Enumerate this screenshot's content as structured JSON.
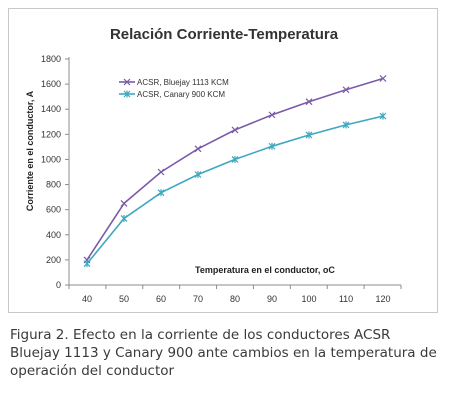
{
  "chart_data": {
    "type": "line",
    "title": "Relación Corriente-Temperatura",
    "xlabel": "Temperatura en el conductor, oC",
    "ylabel": "Corriente en el conductor, A",
    "x": [
      40,
      50,
      60,
      70,
      80,
      90,
      100,
      110,
      120
    ],
    "xticks": [
      "40",
      "50",
      "60",
      "70",
      "80",
      "90",
      "100",
      "110",
      "120"
    ],
    "ylim": [
      0,
      1800
    ],
    "yticks": [
      "0",
      "200",
      "400",
      "600",
      "800",
      "1000",
      "1200",
      "1400",
      "1600",
      "1800"
    ],
    "grid": false,
    "legend_position": "top-left",
    "series": [
      {
        "name": "ACSR, Bluejay 1113 KCM",
        "color": "#7b5ba6",
        "marker": "x",
        "values": [
          200,
          650,
          900,
          1085,
          1235,
          1355,
          1460,
          1555,
          1645
        ]
      },
      {
        "name": "ACSR, Canary 900 KCM",
        "color": "#3fa8c0",
        "marker": "asterisk",
        "values": [
          170,
          530,
          735,
          880,
          1000,
          1105,
          1195,
          1275,
          1345
        ]
      }
    ]
  },
  "caption": "Figura 2. Efecto en la corriente de los conductores ACSR Bluejay 1113 y Canary 900 ante cambios en la temperatura de operación del conductor"
}
